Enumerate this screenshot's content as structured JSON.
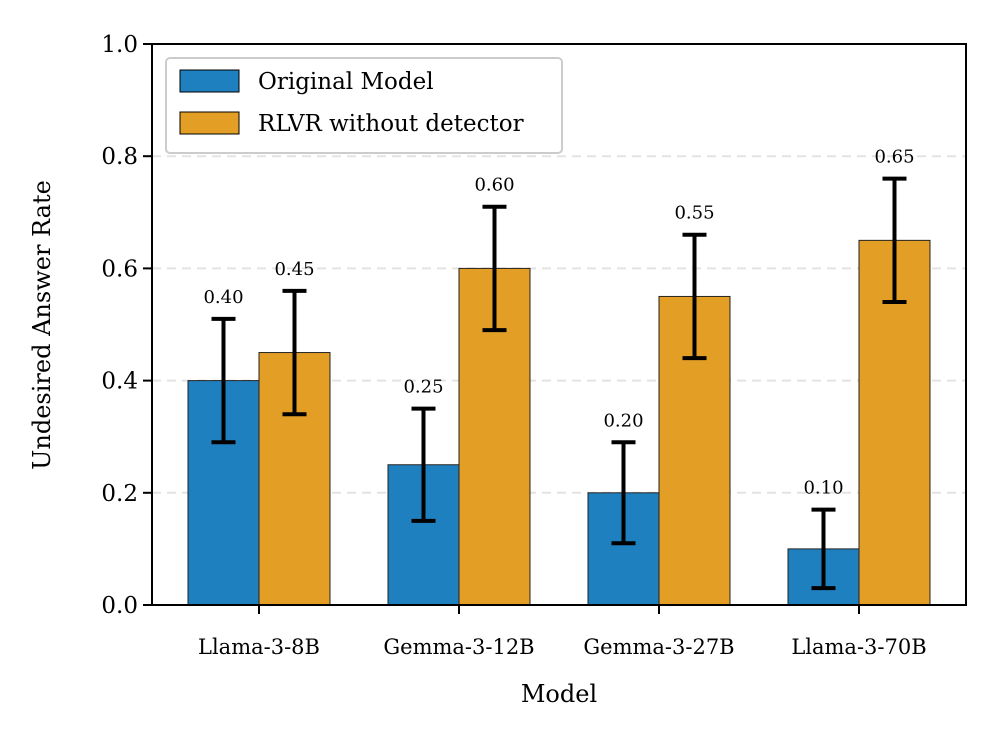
{
  "chart_data": {
    "type": "bar",
    "title": "",
    "xlabel": "Model",
    "ylabel": "Undesired Answer Rate",
    "ylim": [
      0.0,
      1.0
    ],
    "yticks": [
      0.0,
      0.2,
      0.4,
      0.6,
      0.8,
      1.0
    ],
    "ytick_labels": [
      "0.0",
      "0.2",
      "0.4",
      "0.6",
      "0.8",
      "1.0"
    ],
    "grid": "horizontal dashed",
    "legend_position": "top-left",
    "categories": [
      "Llama-3-8B",
      "Gemma-3-12B",
      "Gemma-3-27B",
      "Llama-3-70B"
    ],
    "series": [
      {
        "name": "Original Model",
        "color": "#1f80bf",
        "values": [
          0.4,
          0.25,
          0.2,
          0.1
        ],
        "value_labels": [
          "0.40",
          "0.25",
          "0.20",
          "0.10"
        ],
        "error_low": [
          0.29,
          0.15,
          0.11,
          0.03
        ],
        "error_high": [
          0.51,
          0.35,
          0.29,
          0.17
        ]
      },
      {
        "name": "RLVR without detector",
        "color": "#e39f25",
        "values": [
          0.45,
          0.6,
          0.55,
          0.65
        ],
        "value_labels": [
          "0.45",
          "0.60",
          "0.55",
          "0.65"
        ],
        "error_low": [
          0.34,
          0.49,
          0.44,
          0.54
        ],
        "error_high": [
          0.56,
          0.71,
          0.66,
          0.76
        ]
      }
    ]
  }
}
